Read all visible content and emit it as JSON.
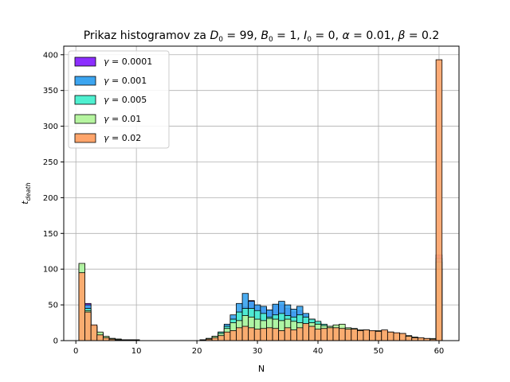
{
  "chart_data": {
    "type": "bar",
    "subtype": "overlaid-histogram",
    "title": "Prikaz histogramov za D₀ = 99, B₀ = 1, I₀ = 0, α = 0.01, β = 0.2",
    "title_parts": {
      "prefix": "Prikaz histogramov za ",
      "d0": "99",
      "b0": "1",
      "i0": "0",
      "alpha": "0.01",
      "beta": "0.2"
    },
    "xlabel": "N",
    "ylabel_main": "t",
    "ylabel_sub": "death",
    "xlim": [
      -2,
      63.3
    ],
    "ylim": [
      0,
      412
    ],
    "xticks": [
      0,
      10,
      20,
      30,
      40,
      50,
      60
    ],
    "yticks": [
      0,
      50,
      100,
      150,
      200,
      250,
      300,
      350,
      400
    ],
    "grid": true,
    "legend_position": "top-left",
    "bin_start": 0.5,
    "bin_width": 1,
    "series": [
      {
        "name": "γ = 0.0001",
        "gamma": "0.0001",
        "color": "#8c2eff",
        "values": [
          97,
          52,
          20,
          10,
          5,
          3,
          2,
          1,
          1,
          1,
          0,
          0,
          0,
          0,
          0,
          0,
          0,
          0,
          0,
          0,
          1,
          3,
          6,
          10,
          21,
          31,
          40,
          47,
          56,
          48,
          46,
          42,
          49,
          50,
          45,
          40,
          42,
          35,
          30,
          25,
          19,
          14,
          10,
          7,
          5,
          4,
          3,
          2,
          1,
          1,
          0,
          0,
          0,
          0,
          0,
          0,
          0,
          0,
          0,
          120
        ]
      },
      {
        "name": "γ = 0.001",
        "gamma": "0.001",
        "color": "#3ca5f0",
        "values": [
          97,
          50,
          20,
          10,
          5,
          3,
          2,
          1,
          1,
          1,
          0,
          0,
          0,
          0,
          0,
          0,
          0,
          0,
          0,
          0,
          1,
          3,
          6,
          12,
          23,
          36,
          52,
          66,
          55,
          50,
          48,
          43,
          51,
          55,
          50,
          44,
          48,
          38,
          30,
          24,
          19,
          14,
          10,
          7,
          5,
          4,
          3,
          2,
          1,
          1,
          0,
          0,
          0,
          0,
          0,
          0,
          0,
          0,
          0,
          115
        ]
      },
      {
        "name": "γ = 0.005",
        "gamma": "0.005",
        "color": "#4ff0d0",
        "values": [
          105,
          45,
          20,
          10,
          5,
          3,
          2,
          1,
          1,
          1,
          0,
          0,
          0,
          0,
          0,
          0,
          0,
          0,
          0,
          0,
          1,
          3,
          6,
          12,
          20,
          30,
          40,
          45,
          45,
          42,
          38,
          33,
          36,
          38,
          35,
          33,
          36,
          33,
          30,
          27,
          23,
          20,
          18,
          17,
          15,
          13,
          10,
          8,
          7,
          6,
          5,
          4,
          3,
          2,
          2,
          1,
          1,
          0,
          0,
          110
        ]
      },
      {
        "name": "γ = 0.01",
        "gamma": "0.01",
        "color": "#b6f5a0",
        "values": [
          108,
          42,
          20,
          12,
          6,
          3,
          2,
          1,
          1,
          1,
          0,
          0,
          0,
          0,
          0,
          0,
          0,
          0,
          0,
          0,
          1,
          3,
          6,
          10,
          17,
          25,
          28,
          35,
          33,
          30,
          28,
          31,
          30,
          28,
          30,
          27,
          25,
          22,
          25,
          23,
          21,
          20,
          22,
          23,
          18,
          17,
          15,
          15,
          13,
          14,
          13,
          12,
          10,
          10,
          7,
          5,
          4,
          3,
          3,
          100
        ]
      },
      {
        "name": "γ = 0.02",
        "gamma": "0.02",
        "color": "#ffa56b",
        "values": [
          95,
          40,
          22,
          8,
          4,
          2,
          1,
          1,
          1,
          0,
          0,
          0,
          0,
          0,
          0,
          0,
          0,
          0,
          0,
          0,
          1,
          2,
          4,
          7,
          12,
          14,
          18,
          20,
          18,
          16,
          17,
          18,
          17,
          14,
          18,
          15,
          18,
          24,
          20,
          16,
          17,
          18,
          18,
          17,
          16,
          16,
          14,
          15,
          14,
          13,
          15,
          12,
          11,
          10,
          6,
          4,
          4,
          3,
          2,
          393
        ]
      }
    ]
  }
}
